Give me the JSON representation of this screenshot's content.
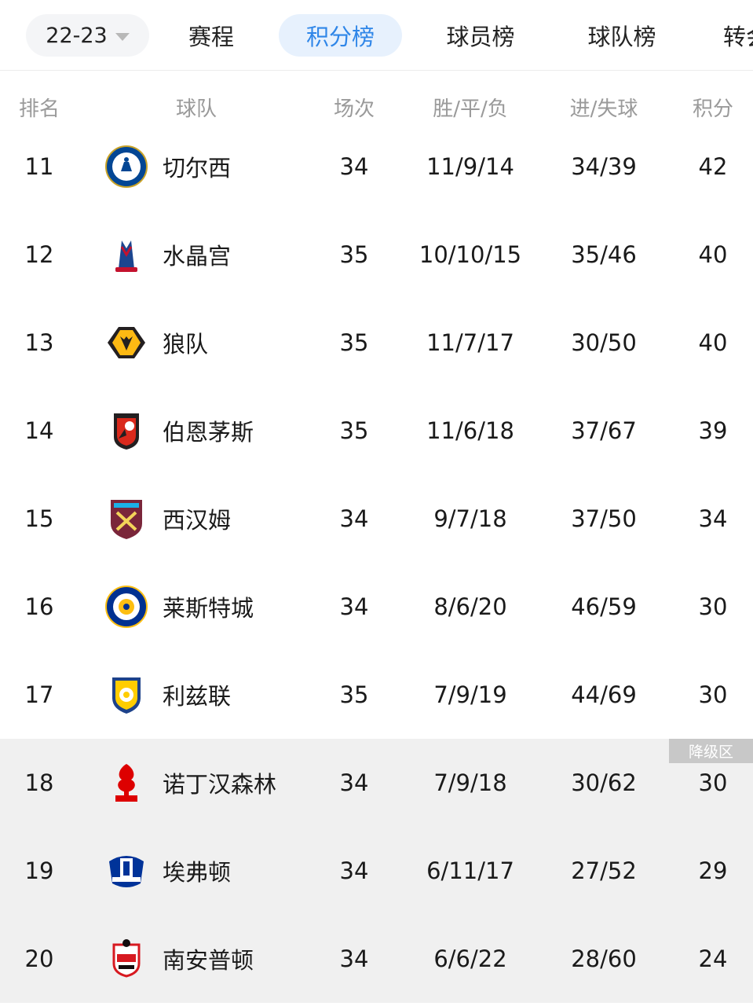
{
  "top_nav": {
    "season": "22-23",
    "tabs": [
      "赛程",
      "积分榜",
      "球员榜",
      "球队榜",
      "转会"
    ],
    "active_tab": "积分榜"
  },
  "table": {
    "headers": {
      "rank": "排名",
      "team": "球队",
      "played": "场次",
      "wdl": "胜/平/负",
      "goals": "进/失球",
      "points": "积分"
    },
    "relegation_label": "降级区",
    "rows": [
      {
        "rank": "11",
        "team": "切尔西",
        "logo": "chelsea-crest",
        "played": "34",
        "wdl": "11/9/14",
        "goals": "34/39",
        "points": "42"
      },
      {
        "rank": "12",
        "team": "水晶宫",
        "logo": "crystal-palace-crest",
        "played": "35",
        "wdl": "10/10/15",
        "goals": "35/46",
        "points": "40"
      },
      {
        "rank": "13",
        "team": "狼队",
        "logo": "wolves-crest",
        "played": "35",
        "wdl": "11/7/17",
        "goals": "30/50",
        "points": "40"
      },
      {
        "rank": "14",
        "team": "伯恩茅斯",
        "logo": "bournemouth-crest",
        "played": "35",
        "wdl": "11/6/18",
        "goals": "37/67",
        "points": "39"
      },
      {
        "rank": "15",
        "team": "西汉姆",
        "logo": "west-ham-crest",
        "played": "34",
        "wdl": "9/7/18",
        "goals": "37/50",
        "points": "34"
      },
      {
        "rank": "16",
        "team": "莱斯特城",
        "logo": "leicester-crest",
        "played": "34",
        "wdl": "8/6/20",
        "goals": "46/59",
        "points": "30"
      },
      {
        "rank": "17",
        "team": "利兹联",
        "logo": "leeds-crest",
        "played": "35",
        "wdl": "7/9/19",
        "goals": "44/69",
        "points": "30"
      },
      {
        "rank": "18",
        "team": "诺丁汉森林",
        "logo": "nottingham-forest-crest",
        "played": "34",
        "wdl": "7/9/18",
        "goals": "30/62",
        "points": "30"
      },
      {
        "rank": "19",
        "team": "埃弗顿",
        "logo": "everton-crest",
        "played": "34",
        "wdl": "6/11/17",
        "goals": "27/52",
        "points": "29"
      },
      {
        "rank": "20",
        "team": "南安普顿",
        "logo": "southampton-crest",
        "played": "34",
        "wdl": "6/6/22",
        "goals": "28/60",
        "points": "24"
      }
    ]
  },
  "colors": {
    "accent": "#2f86e8",
    "tab_active_bg": "#e7f1fd",
    "relegation_bg": "#f0f0f0",
    "badge_bg": "#c8c8c8"
  }
}
